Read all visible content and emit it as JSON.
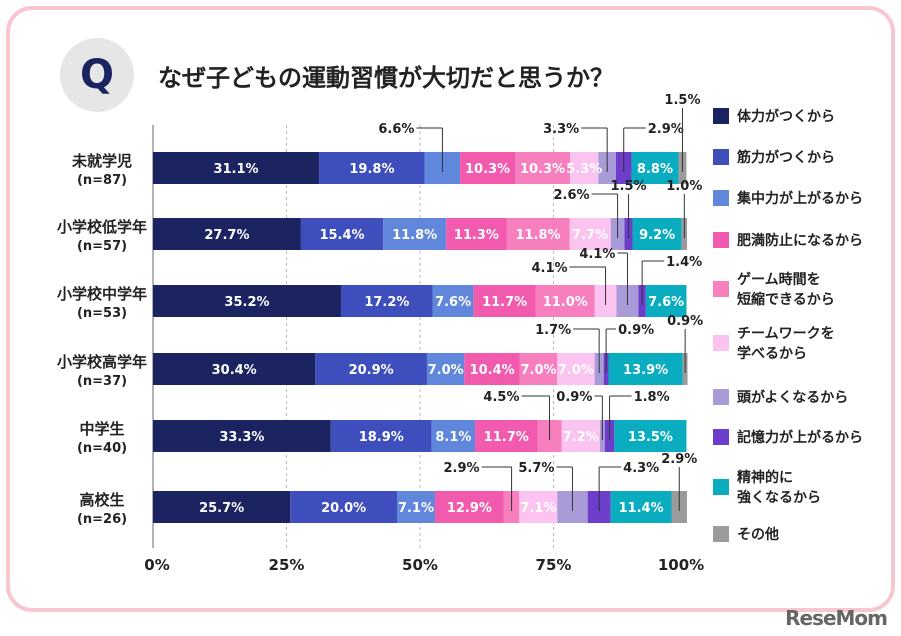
{
  "header": {
    "q_mark": "Q",
    "title": "なぜ子どもの運動習慣が大切だと思うか？"
  },
  "logo": "ReseMom",
  "chart_data": {
    "type": "bar",
    "orientation": "horizontal-stacked-100",
    "title": "なぜ子どもの運動習慣が大切だと思うか？",
    "xlim": [
      0,
      100
    ],
    "xticks": [
      "0%",
      "25%",
      "50%",
      "75%",
      "100%"
    ],
    "grid": true,
    "legend_placement": "right",
    "categories": [
      {
        "name": "未就学児",
        "n": "(n=87)"
      },
      {
        "name": "小学校低学年",
        "n": "(n=57)"
      },
      {
        "name": "小学校中学年",
        "n": "(n=53)"
      },
      {
        "name": "小学校高学年",
        "n": "(n=37)"
      },
      {
        "name": "中学生",
        "n": "(n=40)"
      },
      {
        "name": "高校生",
        "n": "(n=26)"
      }
    ],
    "series": [
      {
        "name": "体力がつくから",
        "color": "#1b2461",
        "values": [
          31.1,
          27.7,
          35.2,
          30.4,
          33.3,
          25.7
        ]
      },
      {
        "name": "筋力がつくから",
        "color": "#3e4fbd",
        "values": [
          19.8,
          15.4,
          17.2,
          20.9,
          18.9,
          20.0
        ]
      },
      {
        "name": "集中力が上がるから",
        "color": "#6087dc",
        "values": [
          6.6,
          11.8,
          7.6,
          7.0,
          8.1,
          7.1
        ]
      },
      {
        "name": "肥満防止になるから",
        "color": "#f25aae",
        "values": [
          10.3,
          11.3,
          11.7,
          10.4,
          11.7,
          12.9
        ]
      },
      {
        "name": "ゲーム時間を\n短縮できるから",
        "color": "#f77fbe",
        "values": [
          10.3,
          11.8,
          11.0,
          7.0,
          4.5,
          2.9
        ]
      },
      {
        "name": "チームワークを\n学べるから",
        "color": "#fbc3ef",
        "values": [
          5.3,
          7.7,
          4.1,
          7.0,
          7.2,
          7.1
        ]
      },
      {
        "name": "頭がよくなるから",
        "color": "#a89bd8",
        "values": [
          3.3,
          2.6,
          4.1,
          1.7,
          0.9,
          5.7
        ]
      },
      {
        "name": "記憶力が上がるから",
        "color": "#6c3ecb",
        "values": [
          2.9,
          1.5,
          1.4,
          0.9,
          1.8,
          4.3
        ]
      },
      {
        "name": "精神的に\n強くなるから",
        "color": "#0aacbf",
        "values": [
          8.8,
          9.2,
          7.6,
          13.9,
          13.5,
          11.4
        ]
      },
      {
        "name": "その他",
        "color": "#9b9b9b",
        "values": [
          1.5,
          1.0,
          0,
          0.9,
          0,
          2.9
        ]
      }
    ]
  }
}
